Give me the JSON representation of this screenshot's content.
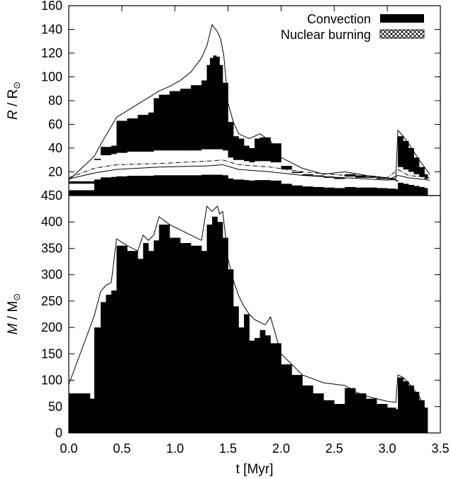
{
  "chart_data": [
    {
      "type": "area",
      "panel": "top",
      "ylabel_italic": "R",
      "ylabel_rest": " / R",
      "ylabel_sub": "⊙",
      "ylim": [
        0,
        160
      ],
      "yticks": [
        20,
        40,
        60,
        80,
        100,
        120,
        140,
        160
      ],
      "yticklabels": [
        "20",
        "40",
        "60",
        "80",
        "100",
        "120",
        "140",
        "160"
      ],
      "legend": {
        "position": "top-right",
        "entries": [
          {
            "label": "Convection",
            "fill": "solid"
          },
          {
            "label": "Nuclear burning",
            "fill": "crosshatch"
          }
        ]
      },
      "series": [
        {
          "name": "Convection",
          "t": [
            0.0,
            0.24,
            0.3,
            0.4,
            0.45,
            0.55,
            0.65,
            0.75,
            0.8,
            0.85,
            0.95,
            1.05,
            1.15,
            1.25,
            1.3,
            1.33,
            1.36,
            1.39,
            1.42,
            1.45,
            1.5,
            1.55,
            1.6,
            1.65,
            1.7,
            1.75,
            1.8,
            1.9,
            2.0,
            2.1,
            2.2,
            2.3,
            2.4,
            2.5,
            2.6,
            2.7,
            2.8,
            2.9,
            3.0,
            3.08,
            3.1,
            3.15,
            3.2,
            3.25,
            3.3,
            3.35,
            3.38
          ],
          "r_outer": [
            12,
            31,
            41,
            42,
            63,
            65,
            68,
            70,
            82,
            85,
            88,
            90,
            93,
            97,
            110,
            116,
            118,
            117,
            110,
            95,
            62,
            50,
            48,
            42,
            40,
            48,
            49,
            44,
            25,
            20,
            18,
            17,
            16,
            15,
            18,
            17,
            16,
            15,
            14,
            13,
            50,
            46,
            40,
            32,
            24,
            18,
            14
          ],
          "r_inner": [
            10,
            30,
            34,
            35,
            36,
            37,
            37,
            37,
            38,
            38,
            38,
            38,
            38,
            39,
            39,
            39,
            39,
            39,
            39,
            38,
            32,
            30,
            30,
            29,
            28,
            29,
            29,
            28,
            22,
            19,
            17,
            16,
            15,
            14,
            16,
            15,
            15,
            14,
            13,
            12,
            24,
            22,
            20,
            18,
            16,
            14,
            13
          ]
        },
        {
          "name": "surface radius",
          "t": [
            0.0,
            0.24,
            0.3,
            0.45,
            0.85,
            0.95,
            1.05,
            1.15,
            1.25,
            1.3,
            1.35,
            1.4,
            1.43,
            1.46,
            1.5,
            1.55,
            1.6,
            1.7,
            1.8,
            1.9,
            2.0,
            2.2,
            2.4,
            2.6,
            2.8,
            3.0,
            3.08,
            3.1,
            3.15,
            3.2,
            3.3,
            3.35,
            3.4
          ],
          "r": [
            13,
            33,
            43,
            66,
            88,
            92,
            97,
            104,
            116,
            126,
            144,
            138,
            132,
            118,
            78,
            62,
            52,
            48,
            52,
            46,
            32,
            23,
            18,
            20,
            17,
            15,
            14,
            55,
            50,
            44,
            30,
            24,
            18
          ]
        },
        {
          "name": "dash-dot radius",
          "t": [
            0.0,
            0.24,
            0.45,
            0.85,
            1.3,
            1.45,
            1.6,
            1.9,
            2.2,
            2.6,
            3.0,
            3.1,
            3.2,
            3.4
          ],
          "r": [
            15,
            23,
            26,
            27,
            29,
            30,
            26,
            24,
            20,
            17,
            15,
            22,
            17,
            15
          ]
        },
        {
          "name": "solid inner radius",
          "t": [
            0.0,
            0.24,
            0.45,
            0.85,
            1.3,
            1.45,
            1.6,
            1.9,
            2.2,
            2.6,
            3.0,
            3.1,
            3.2,
            3.4
          ],
          "r": [
            14,
            19,
            22,
            24,
            25,
            26,
            22,
            20,
            17,
            15,
            13,
            17,
            15,
            13
          ]
        }
      ]
    },
    {
      "type": "area",
      "panel": "bottom",
      "ylabel_italic": "M",
      "ylabel_rest": " / M",
      "ylabel_sub": "⊙",
      "xlabel": "t [Myr]",
      "xlim": [
        0.0,
        3.5
      ],
      "xticks": [
        "0.0",
        "0.5",
        "1.0",
        "1.5",
        "2.0",
        "2.5",
        "3.0",
        "3.5"
      ],
      "ylim": [
        0,
        450
      ],
      "yticks": [
        0,
        50,
        100,
        150,
        200,
        250,
        300,
        350,
        400,
        450
      ],
      "yticklabels": [
        "0",
        "50",
        "100",
        "150",
        "200",
        "250",
        "300",
        "350",
        "400",
        "450"
      ],
      "series": [
        {
          "name": "Convection",
          "t": [
            0.0,
            0.2,
            0.24,
            0.3,
            0.35,
            0.4,
            0.45,
            0.55,
            0.65,
            0.7,
            0.75,
            0.8,
            0.85,
            0.95,
            1.05,
            1.15,
            1.25,
            1.3,
            1.35,
            1.4,
            1.45,
            1.5,
            1.55,
            1.6,
            1.65,
            1.7,
            1.75,
            1.8,
            1.85,
            1.9,
            2.0,
            2.1,
            2.2,
            2.3,
            2.4,
            2.5,
            2.6,
            2.7,
            2.8,
            2.9,
            3.0,
            3.08,
            3.1,
            3.15,
            3.2,
            3.25,
            3.3,
            3.35,
            3.38
          ],
          "m": [
            75,
            65,
            200,
            248,
            262,
            270,
            355,
            345,
            330,
            360,
            345,
            365,
            395,
            370,
            360,
            355,
            345,
            395,
            410,
            400,
            370,
            310,
            240,
            200,
            225,
            175,
            180,
            195,
            185,
            170,
            130,
            110,
            90,
            75,
            62,
            55,
            85,
            75,
            65,
            55,
            48,
            45,
            105,
            98,
            90,
            78,
            62,
            48,
            35
          ]
        },
        {
          "name": "total mass",
          "t": [
            0.0,
            0.24,
            0.3,
            0.35,
            0.4,
            0.45,
            0.55,
            0.65,
            0.7,
            0.75,
            0.8,
            0.85,
            0.95,
            1.05,
            1.15,
            1.25,
            1.3,
            1.35,
            1.4,
            1.42,
            1.45,
            1.5,
            1.55,
            1.6,
            1.65,
            1.7,
            1.75,
            1.8,
            1.85,
            1.9,
            2.0,
            2.2,
            2.4,
            2.6,
            2.7,
            2.8,
            3.0,
            3.08,
            3.1,
            3.15,
            3.2,
            3.3,
            3.38
          ],
          "m": [
            92,
            222,
            268,
            280,
            285,
            368,
            355,
            345,
            375,
            365,
            375,
            410,
            395,
            385,
            375,
            365,
            430,
            420,
            430,
            415,
            420,
            330,
            290,
            260,
            240,
            225,
            215,
            210,
            205,
            220,
            150,
            110,
            95,
            90,
            78,
            70,
            60,
            58,
            110,
            105,
            95,
            70,
            35
          ]
        }
      ]
    }
  ]
}
